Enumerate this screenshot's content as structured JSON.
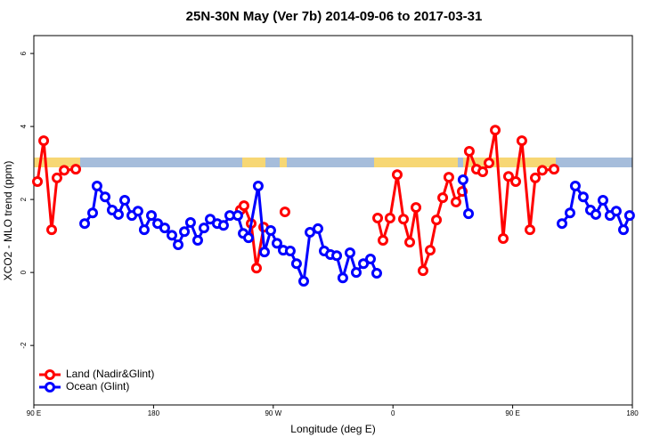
{
  "chart_data": {
    "type": "line",
    "title": "25N-30N May (Ver 7b)   2014-09-06 to 2017-03-31",
    "x_label": "Longitude (deg E)",
    "y_label": "XCO2 - MLO trend (ppm)",
    "xlim": [
      90,
      540
    ],
    "ylim": [
      -3.63,
      6.49
    ],
    "xticks": [
      {
        "value": 90,
        "label": "90 E"
      },
      {
        "value": 180,
        "label": "180"
      },
      {
        "value": 270,
        "label": "90 W"
      },
      {
        "value": 360,
        "label": "0"
      },
      {
        "value": 450,
        "label": "90 E"
      },
      {
        "value": 540,
        "label": "180"
      }
    ],
    "yticks": [
      -2,
      0,
      2,
      4,
      6
    ],
    "legend": "bottom-left",
    "series": [
      {
        "name": "Land (Nadir&Glint)",
        "color": "#ff0000",
        "x": [
          92.7,
          97.4,
          103.4,
          107.4,
          112.8,
          121.5,
          null,
          245.3,
          248.0,
          253.4,
          257.4,
          262.8,
          null,
          278.8,
          null,
          348.5,
          352.5,
          357.8,
          363.2,
          367.9,
          372.6,
          377.3,
          382.6,
          388.0,
          392.7,
          397.4,
          402.0,
          407.4,
          412.1,
          417.4,
          422.8,
          427.5,
          432.2,
          436.9,
          442.9,
          446.9,
          452.3,
          456.9,
          463.0,
          467.0,
          472.3,
          481.1
        ],
        "values": [
          2.49,
          3.61,
          1.17,
          2.59,
          2.8,
          2.83,
          null,
          1.71,
          1.83,
          1.34,
          0.12,
          1.24,
          null,
          1.66,
          null,
          1.49,
          0.88,
          1.49,
          2.68,
          1.46,
          0.83,
          1.78,
          0.05,
          0.61,
          1.44,
          2.05,
          2.61,
          1.93,
          2.22,
          3.32,
          2.83,
          2.76,
          3.0,
          3.9,
          0.93,
          2.63,
          2.49,
          3.61,
          1.17,
          2.59,
          2.8,
          2.83
        ]
      },
      {
        "name": "Ocean (Glint)",
        "color": "#0000ff",
        "x": [
          128.2,
          134.2,
          137.5,
          143.6,
          148.9,
          153.6,
          158.3,
          163.7,
          168.3,
          173.0,
          178.4,
          183.1,
          188.4,
          193.8,
          198.5,
          203.2,
          207.8,
          213.2,
          217.9,
          222.6,
          227.9,
          232.6,
          237.3,
          243.3,
          247.4,
          251.4,
          258.7,
          263.4,
          268.1,
          272.8,
          277.5,
          282.8,
          287.5,
          292.9,
          297.6,
          303.6,
          308.3,
          313.0,
          317.7,
          322.3,
          327.7,
          332.4,
          337.8,
          343.1,
          347.8,
          null,
          412.7,
          416.8,
          null,
          487.1,
          493.1,
          497.1,
          503.1,
          508.5,
          512.5,
          517.9,
          523.2,
          527.9,
          533.3,
          537.9
        ],
        "values": [
          1.34,
          1.63,
          2.37,
          2.07,
          1.71,
          1.59,
          1.98,
          1.56,
          1.68,
          1.17,
          1.56,
          1.34,
          1.22,
          1.02,
          0.76,
          1.12,
          1.37,
          0.88,
          1.22,
          1.46,
          1.34,
          1.29,
          1.56,
          1.56,
          1.07,
          0.95,
          2.37,
          0.56,
          1.15,
          0.8,
          0.61,
          0.59,
          0.24,
          -0.24,
          1.1,
          1.2,
          0.59,
          0.49,
          0.46,
          -0.15,
          0.54,
          0.0,
          0.24,
          0.37,
          -0.02,
          null,
          2.54,
          1.61,
          null,
          1.34,
          1.63,
          2.37,
          2.07,
          1.71,
          1.59,
          1.98,
          1.56,
          1.68,
          1.17,
          1.56
        ]
      }
    ]
  }
}
